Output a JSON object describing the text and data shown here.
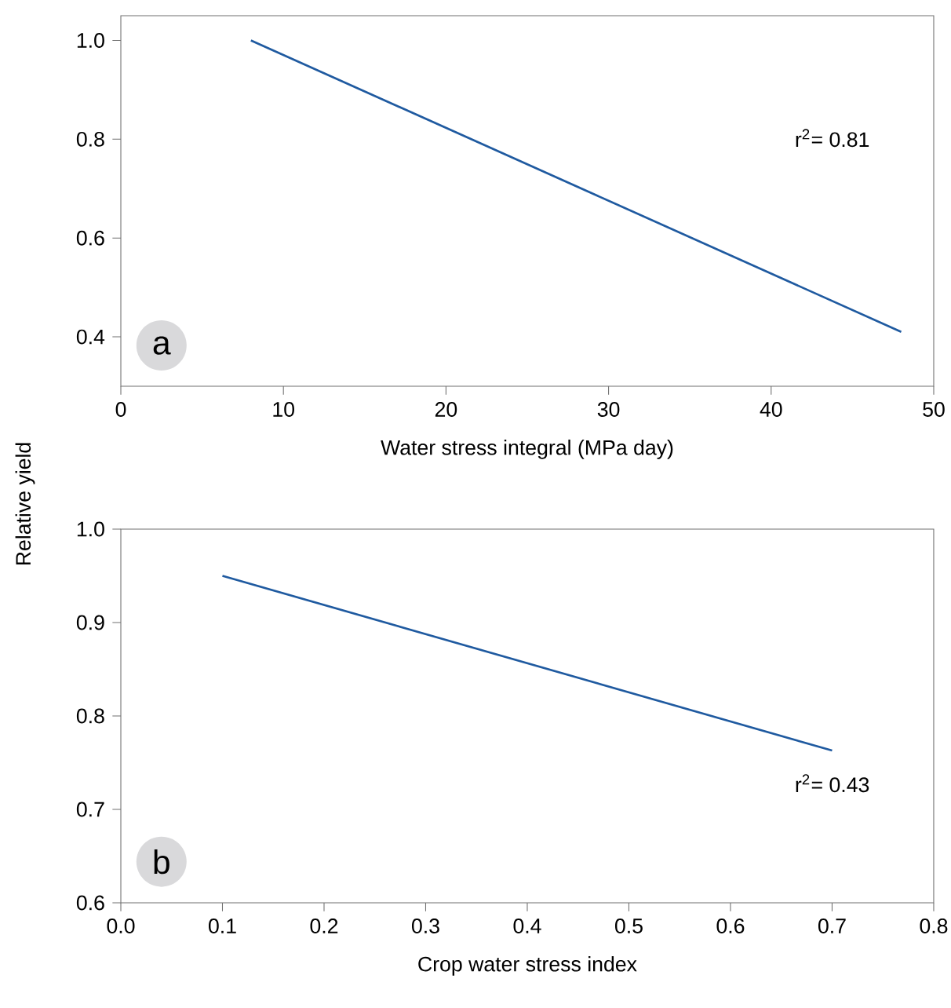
{
  "chart_data": [
    {
      "type": "line",
      "xlabel": "Water stress integral (MPa day)",
      "ylabel": "Relative yield",
      "x": [
        8,
        48
      ],
      "values": [
        1.0,
        0.41
      ],
      "color": "#1f5aa0",
      "xlim": [
        0,
        50
      ],
      "ylim": [
        0.3,
        1.05
      ],
      "xticks": [
        0,
        10,
        20,
        30,
        40,
        50
      ],
      "yticks": [
        {
          "value": 0.4,
          "label": "0.4"
        },
        {
          "value": 0.6,
          "label": "0.6"
        },
        {
          "value": 0.8,
          "label": "0.8"
        },
        {
          "value": 1.0,
          "label": "1.0"
        }
      ],
      "annotations": [
        "a",
        "r$^{2}$= 0.81"
      ]
    },
    {
      "type": "line",
      "xlabel": "Crop water stress index",
      "x": [
        0.1,
        0.7
      ],
      "values": [
        0.95,
        0.763
      ],
      "color": "#1f5aa0",
      "xlim": [
        0,
        0.8
      ],
      "ylim": [
        0.6,
        1.0
      ],
      "xticks": [
        {
          "value": 0,
          "label": "0.0"
        },
        0.1,
        0.2,
        0.3,
        0.4,
        0.5,
        0.6,
        0.7,
        0.8
      ],
      "yticks": [
        {
          "value": 0.6,
          "label": "0.6"
        },
        0.7,
        0.8,
        0.9,
        {
          "value": 1.0,
          "label": "1.0"
        }
      ],
      "annotations": [
        "b",
        "r$^{2}$= 0.43"
      ]
    }
  ]
}
